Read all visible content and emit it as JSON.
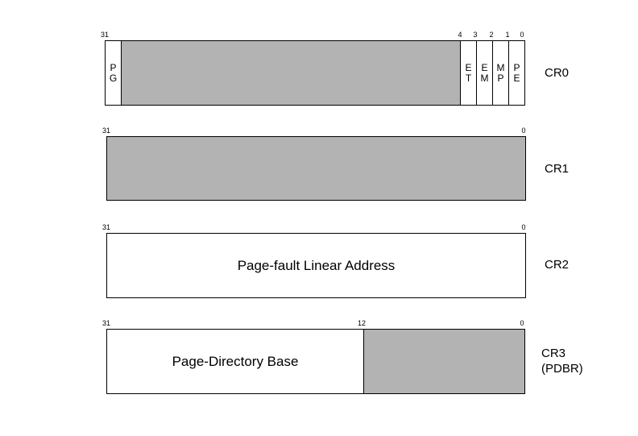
{
  "registers": [
    {
      "name": "CR0",
      "bit_labels": {
        "b31": "31",
        "b4": "4",
        "b3": "3",
        "b2": "2",
        "b1": "1",
        "b0": "0"
      },
      "fields": {
        "pg": "PG",
        "et": "ET",
        "em": "EM",
        "mp": "MP",
        "pe": "PE"
      }
    },
    {
      "name": "CR1",
      "bit_labels": {
        "b31": "31",
        "b0": "0"
      }
    },
    {
      "name": "CR2",
      "bit_labels": {
        "b31": "31",
        "b0": "0"
      },
      "field_label": "Page-fault Linear Address"
    },
    {
      "name": "CR3",
      "name_line2": "(PDBR)",
      "bit_labels": {
        "b31": "31",
        "b12": "12",
        "b0": "0"
      },
      "field_label": "Page-Directory Base"
    }
  ],
  "colors": {
    "reserved_fill": "#b3b3b3",
    "outline": "#000000",
    "background": "#ffffff"
  }
}
